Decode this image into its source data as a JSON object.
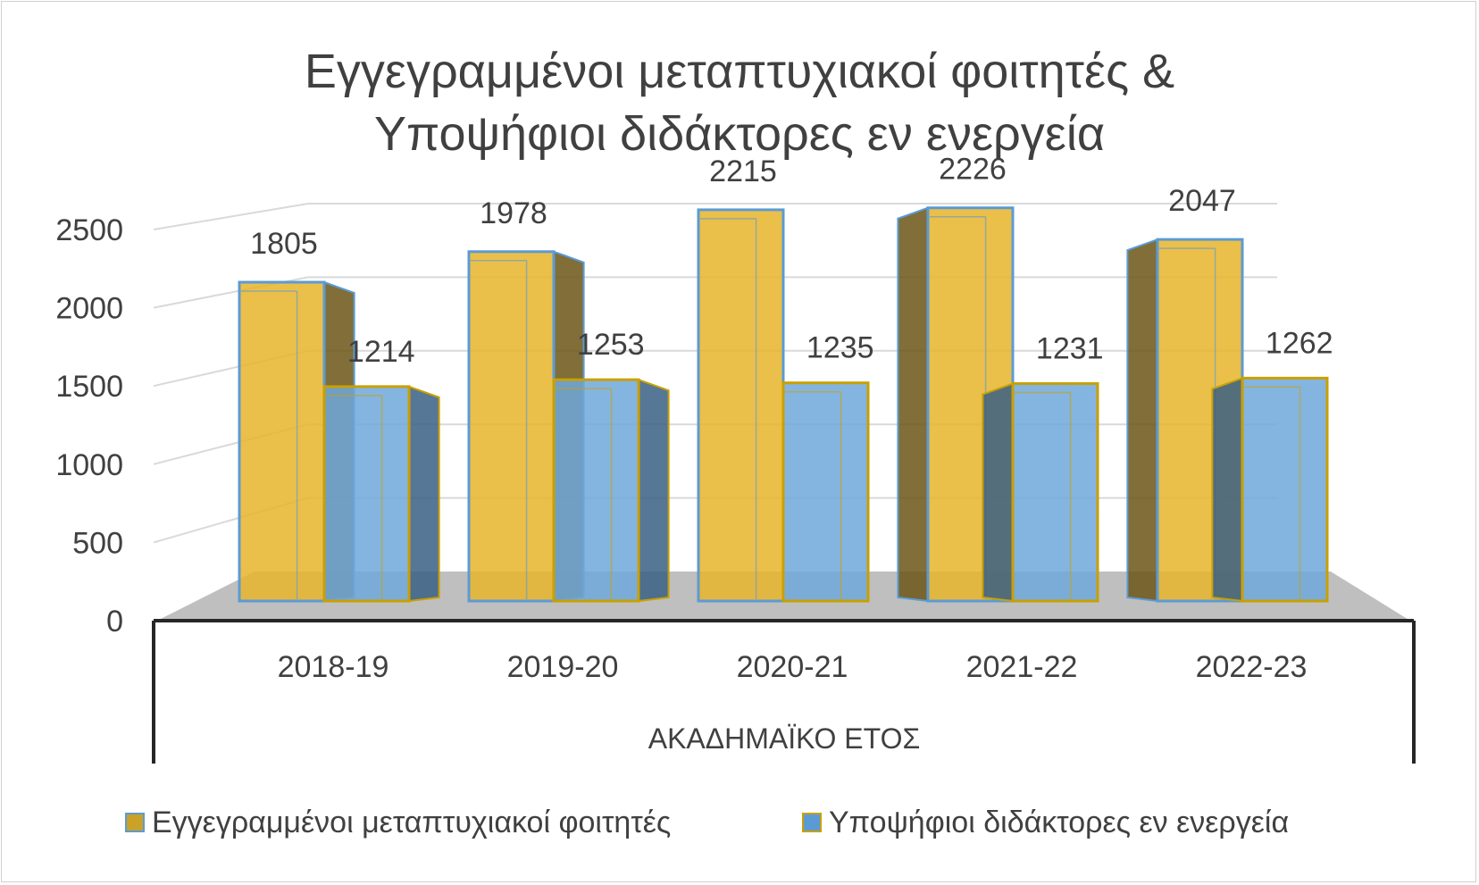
{
  "chart_data": {
    "type": "bar",
    "style": "3d-column",
    "title": [
      "Εγγεγραμμένοι μεταπτυχιακοί φοιτητές &",
      "Υποψήφιοι διδάκτορες εν ενεργεία"
    ],
    "xlabel": "ΑΚΑΔΗΜΑΪΚΟ ΕΤΟΣ",
    "ylabel": "",
    "ylim": [
      0,
      2500
    ],
    "yticks": [
      0,
      500,
      1000,
      1500,
      2000,
      2500
    ],
    "categories": [
      "2018-19",
      "2019-20",
      "2020-21",
      "2021-22",
      "2022-23"
    ],
    "series": [
      {
        "name": "Εγγεγραμμένοι μεταπτυχιακοί φοιτητές",
        "values": [
          1805,
          1978,
          2215,
          2226,
          2047
        ],
        "color": "#e6b42a",
        "border": "#5b9bd5"
      },
      {
        "name": "Υποψήφιοι διδάκτορες εν ενεργεία",
        "values": [
          1214,
          1253,
          1235,
          1231,
          1262
        ],
        "color": "#6fa8dc",
        "border": "#c9a000"
      }
    ],
    "grid": true,
    "legend": "bottom",
    "floor_color": "#bfbfbf"
  }
}
